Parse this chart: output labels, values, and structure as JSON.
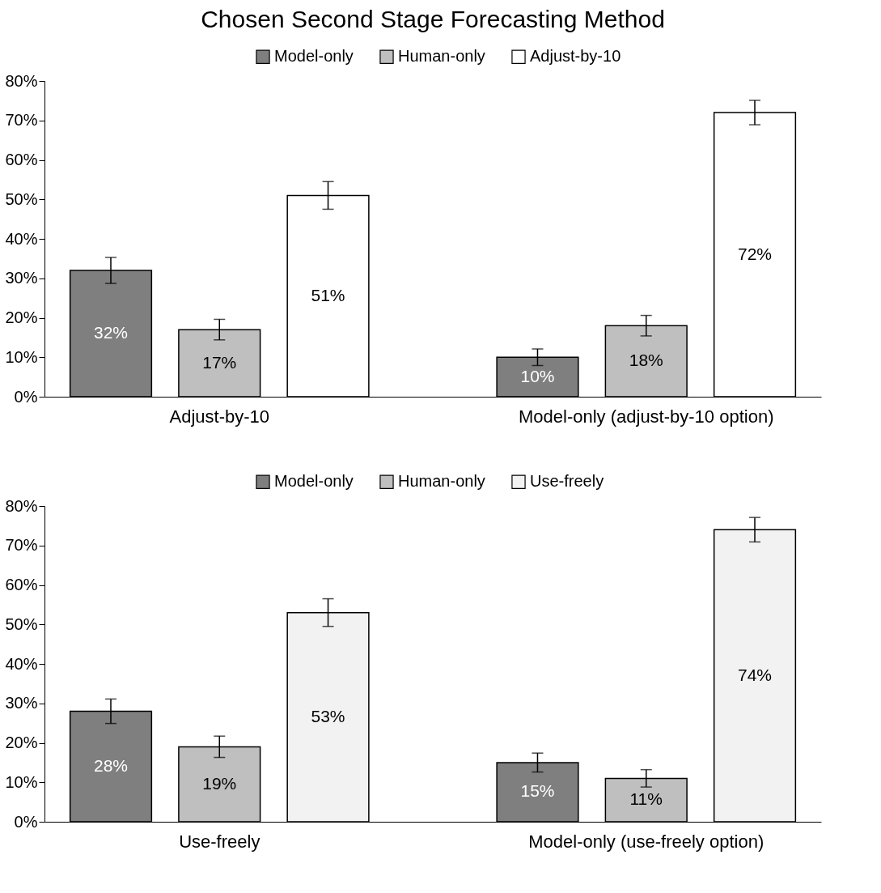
{
  "chart_data": [
    {
      "type": "bar",
      "title": "Chosen Second Stage Forecasting Method",
      "categories": [
        "Adjust-by-10",
        "Model-only (adjust-by-10 option)"
      ],
      "legend": "top",
      "grid": false,
      "ylim": [
        0,
        80
      ],
      "yticks": [
        {
          "value": 0,
          "label": "0%"
        },
        {
          "value": 10,
          "label": "10%"
        },
        {
          "value": 20,
          "label": "20%"
        },
        {
          "value": 30,
          "label": "30%"
        },
        {
          "value": 40,
          "label": "40%"
        },
        {
          "value": 50,
          "label": "50%"
        },
        {
          "value": 60,
          "label": "60%"
        },
        {
          "value": 70,
          "label": "70%"
        },
        {
          "value": 80,
          "label": "80%"
        }
      ],
      "series": [
        {
          "name": "Model-only",
          "color": "#7f7f7f",
          "values": [
            32,
            10
          ],
          "errors": [
            3.3,
            2.1
          ],
          "value_labels": [
            "32%",
            "10%"
          ]
        },
        {
          "name": "Human-only",
          "color": "#bfbfbf",
          "values": [
            17,
            18
          ],
          "errors": [
            2.6,
            2.6
          ],
          "value_labels": [
            "17%",
            "18%"
          ]
        },
        {
          "name": "Adjust-by-10",
          "color": "#ffffff",
          "values": [
            51,
            72
          ],
          "errors": [
            3.5,
            3.1
          ],
          "value_labels": [
            "51%",
            "72%"
          ]
        }
      ]
    },
    {
      "type": "bar",
      "categories": [
        "Use-freely",
        "Model-only (use-freely option)"
      ],
      "legend": "top",
      "grid": false,
      "ylim": [
        0,
        80
      ],
      "yticks": [
        {
          "value": 0,
          "label": "0%"
        },
        {
          "value": 10,
          "label": "10%"
        },
        {
          "value": 20,
          "label": "20%"
        },
        {
          "value": 30,
          "label": "30%"
        },
        {
          "value": 40,
          "label": "40%"
        },
        {
          "value": 50,
          "label": "50%"
        },
        {
          "value": 60,
          "label": "60%"
        },
        {
          "value": 70,
          "label": "70%"
        },
        {
          "value": 80,
          "label": "80%"
        }
      ],
      "series": [
        {
          "name": "Model-only",
          "color": "#7f7f7f",
          "values": [
            28,
            15
          ],
          "errors": [
            3.1,
            2.4
          ],
          "value_labels": [
            "28%",
            "15%"
          ]
        },
        {
          "name": "Human-only",
          "color": "#bfbfbf",
          "values": [
            19,
            11
          ],
          "errors": [
            2.7,
            2.2
          ],
          "value_labels": [
            "19%",
            "11%"
          ]
        },
        {
          "name": "Use-freely",
          "color": "#f2f2f2",
          "values": [
            53,
            74
          ],
          "errors": [
            3.5,
            3.1
          ],
          "value_labels": [
            "53%",
            "74%"
          ]
        }
      ]
    }
  ]
}
